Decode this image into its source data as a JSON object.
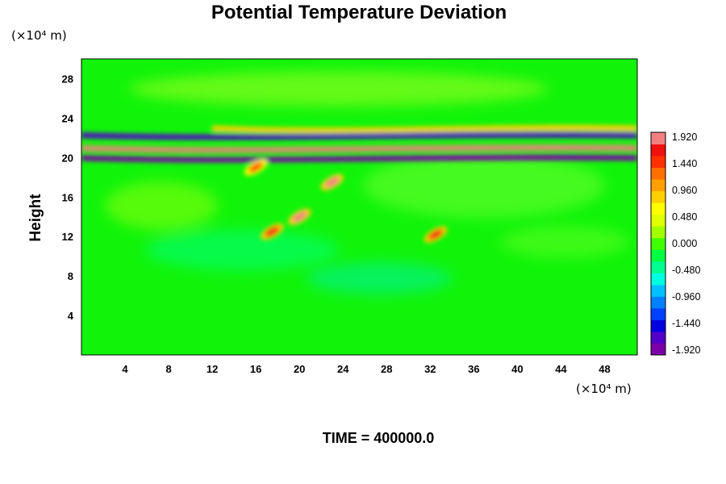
{
  "chart_data": {
    "type": "heatmap",
    "title": "Potential Temperature Deviation",
    "ylabel": "Height",
    "xunit": "(×10⁴ m)",
    "yunit": "(×10⁴ m)",
    "footer": "TIME = 400000.0",
    "xlim": [
      0,
      51
    ],
    "ylim": [
      0,
      30
    ],
    "xticks": [
      4,
      8,
      12,
      16,
      20,
      24,
      28,
      32,
      36,
      40,
      44,
      48
    ],
    "yticks": [
      4,
      8,
      12,
      16,
      20,
      24,
      28
    ],
    "colorbar": {
      "range": [
        -1.92,
        1.92
      ],
      "tick_labels": [
        "1.920",
        "1.440",
        "0.960",
        "0.480",
        "0.000",
        "-0.480",
        "-0.960",
        "-1.440",
        "-1.920"
      ],
      "colors": [
        "#7b00a8",
        "#5200c8",
        "#0000e0",
        "#0040ff",
        "#0080ff",
        "#00c0ff",
        "#00ffe0",
        "#00ff90",
        "#00ff40",
        "#40ff00",
        "#a0ff00",
        "#e0ff00",
        "#ffff00",
        "#ffd000",
        "#ffa000",
        "#ff7000",
        "#ff3000",
        "#f01010",
        "#f08080"
      ]
    },
    "features": [
      {
        "kind": "band",
        "x": [
          0,
          51
        ],
        "y": 21.0,
        "value": 1.92
      },
      {
        "kind": "band",
        "x": [
          0,
          51
        ],
        "y": 20.0,
        "value": -1.92
      },
      {
        "kind": "band",
        "x": [
          0,
          51
        ],
        "y": 22.3,
        "value": -1.6
      },
      {
        "kind": "band",
        "x": [
          12,
          51
        ],
        "y": 23.0,
        "value": 0.8
      },
      {
        "kind": "blob",
        "x": 23.0,
        "y": 17.5,
        "value": 1.92
      },
      {
        "kind": "blob",
        "x": 20.0,
        "y": 14.0,
        "value": 1.92
      },
      {
        "kind": "blob",
        "x": 17.5,
        "y": 12.5,
        "value": 1.6
      },
      {
        "kind": "blob",
        "x": 32.5,
        "y": 12.2,
        "value": 1.6
      },
      {
        "kind": "blob",
        "x": 16.0,
        "y": 19.0,
        "value": 1.44
      }
    ],
    "background_value": 0.2
  }
}
